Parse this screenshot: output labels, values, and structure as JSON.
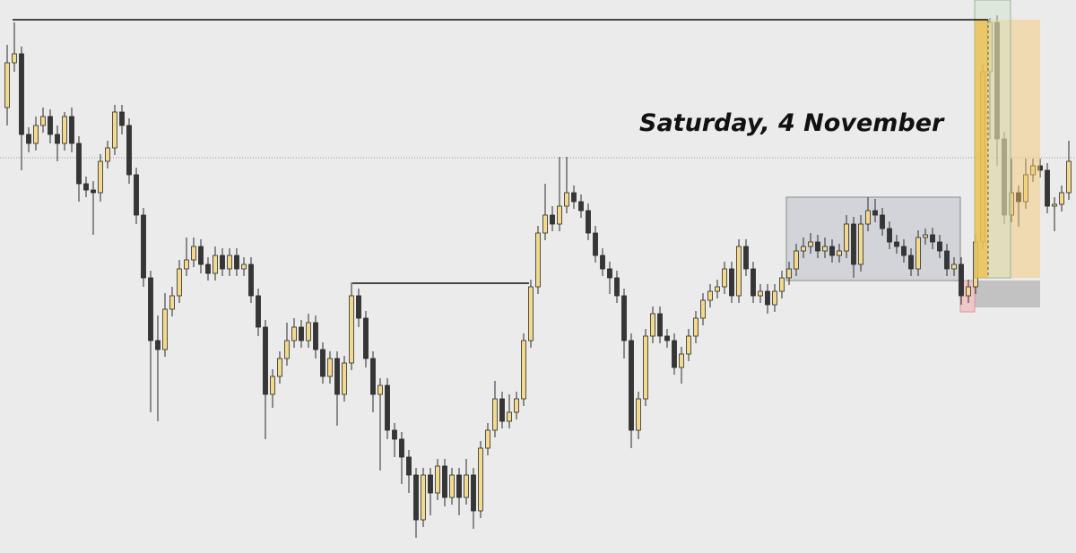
{
  "chart_data": {
    "type": "candlestick",
    "annotation": "Saturday, 4 November",
    "up_color": "#f3d98c",
    "down_color": "#363636",
    "ylim": [
      0,
      617
    ],
    "open": [
      497,
      547,
      557,
      467,
      457,
      477,
      487,
      467,
      457,
      487,
      457,
      412,
      405,
      402,
      437,
      452,
      492,
      477,
      422,
      377,
      307,
      237,
      227,
      272,
      287,
      317,
      327,
      342,
      322,
      312,
      332,
      317,
      332,
      317,
      322,
      287,
      252,
      177,
      197,
      217,
      237,
      252,
      237,
      257,
      227,
      197,
      217,
      177,
      212,
      287,
      262,
      217,
      177,
      187,
      137,
      127,
      107,
      87,
      37,
      87,
      67,
      97,
      62,
      87,
      62,
      87,
      47,
      117,
      137,
      172,
      147,
      157,
      172,
      237,
      297,
      357,
      377,
      367,
      387,
      402,
      392,
      382,
      357,
      332,
      317,
      307,
      287,
      237,
      137,
      172,
      242,
      267,
      242,
      237,
      207,
      222,
      242,
      262,
      282,
      292,
      297,
      317,
      287,
      342,
      317,
      287,
      292,
      277,
      292,
      307,
      317,
      337,
      342,
      347,
      337,
      342,
      332,
      337,
      367,
      322,
      367,
      382,
      377,
      362,
      347,
      342,
      332,
      317,
      352,
      355,
      347,
      337,
      317,
      322,
      287,
      297,
      347,
      537,
      592,
      462,
      377,
      402,
      392,
      422,
      432,
      427,
      387,
      389,
      402
    ],
    "high": [
      567,
      592,
      565,
      475,
      487,
      497,
      495,
      477,
      492,
      497,
      465,
      420,
      415,
      445,
      460,
      500,
      500,
      485,
      430,
      385,
      315,
      265,
      290,
      297,
      327,
      352,
      352,
      350,
      330,
      342,
      340,
      340,
      340,
      330,
      330,
      295,
      260,
      205,
      225,
      257,
      262,
      260,
      267,
      265,
      235,
      225,
      225,
      220,
      302,
      295,
      270,
      225,
      195,
      195,
      145,
      135,
      115,
      95,
      95,
      95,
      105,
      105,
      95,
      95,
      105,
      95,
      125,
      145,
      192,
      180,
      177,
      180,
      245,
      305,
      365,
      412,
      387,
      442,
      442,
      410,
      400,
      390,
      365,
      340,
      325,
      315,
      295,
      245,
      180,
      250,
      275,
      275,
      250,
      245,
      230,
      250,
      270,
      290,
      300,
      305,
      325,
      325,
      350,
      350,
      325,
      300,
      300,
      300,
      315,
      325,
      345,
      352,
      357,
      355,
      352,
      350,
      345,
      377,
      375,
      377,
      397,
      395,
      385,
      370,
      355,
      350,
      340,
      360,
      362,
      363,
      355,
      345,
      330,
      330,
      305,
      355,
      545,
      597,
      600,
      470,
      440,
      410,
      440,
      440,
      440,
      435,
      397,
      410,
      460
    ],
    "low": [
      477,
      537,
      427,
      447,
      449,
      469,
      457,
      437,
      449,
      447,
      392,
      397,
      355,
      392,
      429,
      444,
      467,
      412,
      367,
      297,
      157,
      147,
      219,
      264,
      279,
      309,
      319,
      312,
      304,
      304,
      309,
      309,
      309,
      309,
      279,
      242,
      127,
      162,
      189,
      209,
      229,
      229,
      229,
      217,
      189,
      189,
      142,
      169,
      204,
      252,
      207,
      157,
      92,
      127,
      107,
      77,
      67,
      17,
      29,
      42,
      59,
      52,
      54,
      42,
      54,
      27,
      39,
      109,
      129,
      139,
      139,
      149,
      164,
      229,
      289,
      349,
      359,
      359,
      379,
      384,
      374,
      349,
      324,
      309,
      289,
      279,
      217,
      117,
      127,
      164,
      234,
      234,
      229,
      199,
      189,
      214,
      234,
      254,
      274,
      284,
      289,
      279,
      279,
      309,
      279,
      279,
      267,
      269,
      284,
      299,
      309,
      329,
      334,
      329,
      329,
      324,
      324,
      329,
      307,
      314,
      359,
      369,
      354,
      339,
      334,
      324,
      309,
      309,
      344,
      339,
      329,
      309,
      309,
      277,
      279,
      289,
      339,
      462,
      432,
      367,
      369,
      364,
      384,
      414,
      419,
      379,
      359,
      381,
      394
    ],
    "close": [
      547,
      557,
      467,
      457,
      477,
      487,
      467,
      457,
      487,
      457,
      412,
      405,
      402,
      437,
      452,
      492,
      477,
      422,
      377,
      307,
      237,
      227,
      272,
      287,
      317,
      327,
      342,
      322,
      312,
      332,
      317,
      332,
      317,
      322,
      287,
      252,
      177,
      197,
      217,
      237,
      252,
      237,
      257,
      227,
      197,
      217,
      177,
      212,
      287,
      262,
      217,
      177,
      187,
      137,
      127,
      107,
      87,
      37,
      87,
      67,
      97,
      62,
      87,
      62,
      87,
      47,
      117,
      137,
      172,
      147,
      157,
      172,
      237,
      297,
      357,
      377,
      367,
      387,
      402,
      392,
      382,
      357,
      332,
      317,
      307,
      287,
      237,
      137,
      172,
      242,
      267,
      242,
      237,
      207,
      222,
      242,
      262,
      282,
      292,
      297,
      317,
      287,
      342,
      317,
      287,
      292,
      277,
      292,
      307,
      317,
      337,
      342,
      347,
      337,
      342,
      332,
      337,
      367,
      322,
      367,
      382,
      377,
      362,
      347,
      342,
      332,
      317,
      352,
      355,
      347,
      337,
      317,
      322,
      287,
      297,
      347,
      537,
      592,
      462,
      377,
      402,
      392,
      422,
      432,
      427,
      387,
      389,
      402,
      437
    ]
  }
}
